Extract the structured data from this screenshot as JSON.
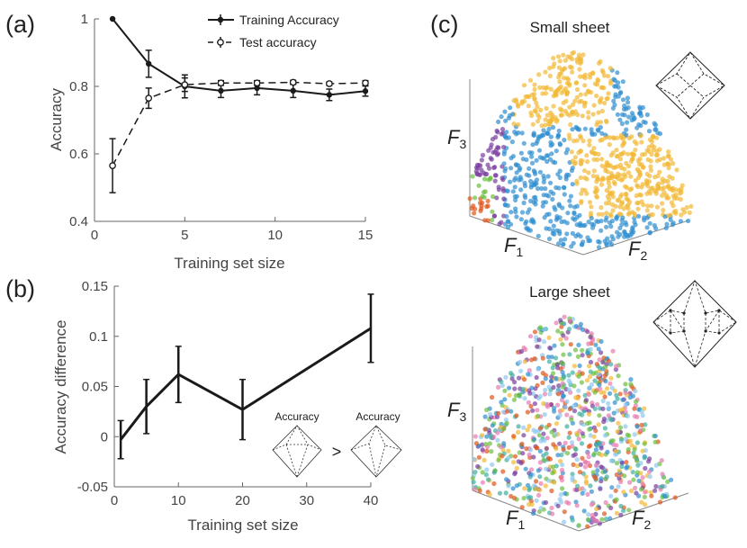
{
  "panel_labels": [
    "(a)",
    "(b)",
    "(c)"
  ],
  "colors": {
    "axis": "#666666",
    "line": "#1a1a1a",
    "orange": "#f2b833",
    "blue": "#2f8fd0",
    "purple": "#7a3fa0",
    "green": "#6bbf3f",
    "red": "#e0541a",
    "lightblue": "#8ec8ee"
  },
  "chart_data": [
    {
      "type": "line",
      "panel": "(a)",
      "xlabel": "Training set size",
      "ylabel": "Accuracy",
      "xlim": [
        0,
        15
      ],
      "ylim": [
        0.4,
        1.0
      ],
      "xticks": [
        0,
        5,
        10,
        15
      ],
      "yticks": [
        0.4,
        0.6,
        0.8,
        1
      ],
      "x": [
        1,
        3,
        5,
        7,
        9,
        11,
        13,
        15
      ],
      "series": [
        {
          "name": "Training Accuracy",
          "style": "solid",
          "marker": "filled",
          "values": [
            1.0,
            0.867,
            0.8,
            0.787,
            0.795,
            0.787,
            0.775,
            0.786
          ],
          "errors": [
            0.0,
            0.04,
            0.034,
            0.02,
            0.02,
            0.02,
            0.017,
            0.015
          ]
        },
        {
          "name": "Test accuracy",
          "style": "dashed",
          "marker": "open",
          "values": [
            0.565,
            0.765,
            0.805,
            0.81,
            0.81,
            0.812,
            0.808,
            0.81
          ],
          "errors": [
            0.08,
            0.03,
            0.02,
            0.007,
            0.007,
            0.006,
            0.005,
            0.007
          ]
        }
      ]
    },
    {
      "type": "line",
      "panel": "(b)",
      "xlabel": "Training set size",
      "ylabel": "Accuracy difference",
      "xlim": [
        0,
        40
      ],
      "ylim": [
        -0.05,
        0.15
      ],
      "xticks": [
        0,
        10,
        20,
        30,
        40
      ],
      "yticks": [
        -0.05,
        0,
        0.05,
        0.1,
        0.15
      ],
      "x": [
        1,
        5,
        10,
        20,
        40
      ],
      "values": [
        -0.003,
        0.03,
        0.062,
        0.027,
        0.108
      ],
      "errors": [
        0.019,
        0.027,
        0.028,
        0.03,
        0.034
      ],
      "inset": {
        "left_label": "Accuracy",
        "right_label": "Accuracy",
        "operator": ">"
      }
    }
  ],
  "panel_c": {
    "top": {
      "title": "Small sheet",
      "axes": [
        "F",
        "F",
        "F"
      ],
      "subscripts": [
        "1",
        "2",
        "3"
      ]
    },
    "bottom": {
      "title": "Large sheet",
      "axes": [
        "F",
        "F",
        "F"
      ],
      "subscripts": [
        "1",
        "2",
        "3"
      ]
    }
  }
}
